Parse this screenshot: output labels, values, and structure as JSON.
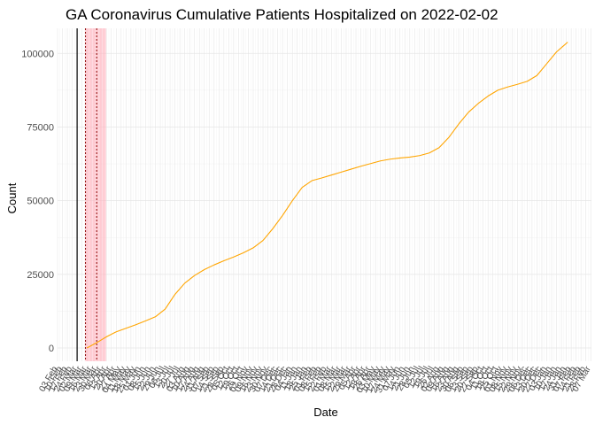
{
  "chart_data": {
    "type": "line",
    "title": "GA Coronavirus Cumulative Patients Hospitalized on 2022-02-02",
    "xlabel": "Date",
    "ylabel": "Count",
    "x_range": [
      "2020-02-03",
      "2022-03-08"
    ],
    "ylim": [
      -4500,
      108500
    ],
    "yticks": [
      0,
      25000,
      50000,
      75000,
      100000
    ],
    "ytick_labels": [
      "0",
      "25000",
      "50000",
      "75000",
      "100000"
    ],
    "x_tick_interval_days": 7,
    "grid": true,
    "legend": "none",
    "colors": {
      "series": "#FFA500",
      "event_line": "#000000",
      "event_dotted": "#8B0000",
      "shade_lines": "#FFB6C1",
      "grid_major": "#e6e6e6",
      "grid_minor": "#f2f2f2"
    },
    "event_lines": [
      {
        "date": "2020-03-02",
        "style": "solid"
      },
      {
        "date": "2020-03-14",
        "style": "dotted"
      },
      {
        "date": "2020-03-30",
        "style": "dotted"
      }
    ],
    "shaded_region": {
      "start": "2020-03-14",
      "end": "2020-04-12"
    },
    "series": [
      {
        "x": [
          "2020-03-16",
          "2020-03-30",
          "2020-04-13",
          "2020-04-27",
          "2020-05-11",
          "2020-05-25",
          "2020-06-08",
          "2020-06-22",
          "2020-07-06",
          "2020-07-20",
          "2020-08-03",
          "2020-08-17",
          "2020-08-31",
          "2020-09-14",
          "2020-09-28",
          "2020-10-12",
          "2020-10-26",
          "2020-11-09",
          "2020-11-23",
          "2020-12-07",
          "2020-12-21",
          "2021-01-04",
          "2021-01-18",
          "2021-02-01",
          "2021-02-15",
          "2021-03-01",
          "2021-03-15",
          "2021-03-29",
          "2021-04-12",
          "2021-04-26",
          "2021-05-10",
          "2021-05-24",
          "2021-06-07",
          "2021-06-21",
          "2021-07-05",
          "2021-07-19",
          "2021-08-02",
          "2021-08-16",
          "2021-08-30",
          "2021-09-13",
          "2021-09-27",
          "2021-10-11",
          "2021-10-25",
          "2021-11-08",
          "2021-11-22",
          "2021-12-06",
          "2021-12-20",
          "2022-01-03",
          "2022-01-17",
          "2022-02-02"
        ],
        "values": [
          0,
          1800,
          3800,
          5500,
          6700,
          7900,
          9200,
          10600,
          13200,
          18200,
          22000,
          24600,
          26600,
          28200,
          29600,
          30900,
          32300,
          34000,
          36500,
          40500,
          45000,
          50000,
          54500,
          56800,
          57700,
          58700,
          59700,
          60700,
          61700,
          62600,
          63500,
          64100,
          64500,
          64800,
          65300,
          66200,
          68000,
          71500,
          76000,
          80000,
          83000,
          85500,
          87500,
          88600,
          89500,
          90500,
          92500,
          96500,
          100500,
          103800
        ]
      }
    ]
  }
}
